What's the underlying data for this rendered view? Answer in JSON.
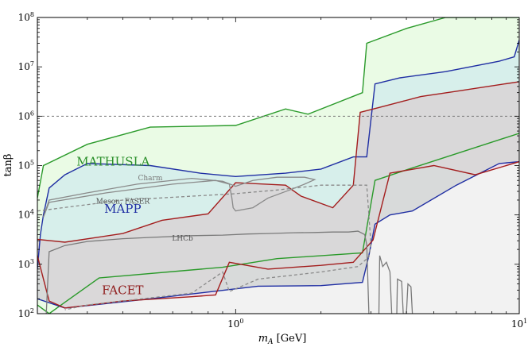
{
  "chart_data": {
    "type": "area",
    "xlabel_main": "m",
    "xlabel_sub": "A",
    "xlabel_unit": " [GeV]",
    "ylabel": "tanβ",
    "x_scale": "log",
    "y_scale": "log",
    "xlim": [
      0.2,
      10
    ],
    "ylim": [
      100,
      100000000
    ],
    "x_ticks": [
      {
        "value": 1,
        "label": "10",
        "exp": "0"
      },
      {
        "value": 10,
        "label": "10",
        "exp": "1"
      }
    ],
    "y_ticks": [
      {
        "value": 100,
        "label": "10",
        "exp": "2"
      },
      {
        "value": 1000,
        "label": "10",
        "exp": "3"
      },
      {
        "value": 10000,
        "label": "10",
        "exp": "4"
      },
      {
        "value": 100000,
        "label": "10",
        "exp": "5"
      },
      {
        "value": 1000000,
        "label": "10",
        "exp": "6"
      },
      {
        "value": 10000000,
        "label": "10",
        "exp": "7"
      },
      {
        "value": 100000000,
        "label": "10",
        "exp": "8"
      }
    ],
    "reference_line": {
      "y": 1000000,
      "style": "dashed",
      "color": "#777777"
    },
    "series": [
      {
        "name": "MATHUSLA",
        "color": "#2a9a2a",
        "fill": "#e6fae0",
        "upper": [
          [
            0.2,
            22000
          ],
          [
            0.21,
            100000
          ],
          [
            0.3,
            270000
          ],
          [
            0.5,
            600000
          ],
          [
            1.0,
            650000
          ],
          [
            1.5,
            1400000
          ],
          [
            1.8,
            1100000
          ],
          [
            2.8,
            3000000
          ],
          [
            2.9,
            30000000
          ],
          [
            4.0,
            60000000
          ],
          [
            5.5,
            100000000
          ],
          [
            10,
            100000000
          ]
        ],
        "lower": [
          [
            0.2,
            150
          ],
          [
            0.22,
            100
          ],
          [
            0.25,
            170
          ],
          [
            0.33,
            530
          ],
          [
            0.9,
            870
          ],
          [
            1.4,
            1300
          ],
          [
            2.8,
            1700
          ],
          [
            3.1,
            50000
          ],
          [
            4.0,
            82000
          ],
          [
            10,
            450000
          ]
        ]
      },
      {
        "name": "MAPP",
        "color": "#1f2ea3",
        "fill": "#d4ecec",
        "upper": [
          [
            0.2,
            800
          ],
          [
            0.205,
            4000
          ],
          [
            0.21,
            10000
          ],
          [
            0.22,
            35000
          ],
          [
            0.25,
            65000
          ],
          [
            0.3,
            110000
          ],
          [
            0.5,
            100000
          ],
          [
            0.75,
            70000
          ],
          [
            1.0,
            60000
          ],
          [
            1.5,
            70000
          ],
          [
            2.0,
            85000
          ],
          [
            2.6,
            150000
          ],
          [
            2.9,
            150000
          ],
          [
            3.1,
            4500000
          ],
          [
            3.8,
            6000000
          ],
          [
            5.5,
            8000000
          ],
          [
            8.5,
            13000000
          ],
          [
            9.6,
            16000000
          ],
          [
            10,
            35000000
          ]
        ],
        "lower": [
          [
            0.2,
            200
          ],
          [
            0.25,
            130
          ],
          [
            0.5,
            200
          ],
          [
            1.2,
            360
          ],
          [
            2.0,
            370
          ],
          [
            2.8,
            430
          ],
          [
            2.95,
            1500
          ],
          [
            3.1,
            6500
          ],
          [
            3.5,
            10000
          ],
          [
            4.2,
            12000
          ],
          [
            6.0,
            40000
          ],
          [
            8.5,
            110000
          ],
          [
            10,
            120000
          ]
        ]
      },
      {
        "name": "FACET",
        "color": "#a31d1d",
        "fill": "#f0dcea",
        "upper": [
          [
            0.2,
            3200
          ],
          [
            0.25,
            2800
          ],
          [
            0.4,
            4200
          ],
          [
            0.55,
            7800
          ],
          [
            0.8,
            10500
          ],
          [
            1.0,
            45000
          ],
          [
            1.5,
            40000
          ],
          [
            1.7,
            24000
          ],
          [
            2.2,
            14000
          ],
          [
            2.6,
            40000
          ],
          [
            2.75,
            1200000
          ],
          [
            3.2,
            1500000
          ],
          [
            4.5,
            2500000
          ],
          [
            6.0,
            3200000
          ],
          [
            10,
            5000000
          ]
        ],
        "lower": [
          [
            0.2,
            1500
          ],
          [
            0.22,
            180
          ],
          [
            0.25,
            130
          ],
          [
            0.4,
            180
          ],
          [
            0.7,
            220
          ],
          [
            0.85,
            240
          ],
          [
            0.95,
            1100
          ],
          [
            1.3,
            800
          ],
          [
            2.0,
            950
          ],
          [
            2.6,
            1100
          ],
          [
            3.05,
            3100
          ],
          [
            3.5,
            70000
          ],
          [
            5.0,
            100000
          ],
          [
            7.0,
            65000
          ],
          [
            10,
            120000
          ]
        ]
      }
    ],
    "contours": [
      {
        "name": "Charm",
        "color": "#8a8a8a",
        "dashed": false,
        "points": [
          [
            0.21,
            9000
          ],
          [
            0.22,
            18000
          ],
          [
            0.35,
            28000
          ],
          [
            0.6,
            42000
          ],
          [
            0.85,
            50000
          ],
          [
            0.95,
            42000
          ],
          [
            0.97,
            22000
          ],
          [
            0.98,
            14000
          ],
          [
            1.0,
            12000
          ],
          [
            1.15,
            14000
          ],
          [
            1.3,
            22000
          ],
          [
            1.55,
            32000
          ],
          [
            1.75,
            42000
          ],
          [
            1.9,
            52000
          ],
          [
            1.75,
            58000
          ],
          [
            1.4,
            58000
          ],
          [
            1.15,
            50000
          ],
          [
            1.0,
            38000
          ],
          [
            0.9,
            48000
          ],
          [
            0.7,
            55000
          ],
          [
            0.45,
            42000
          ],
          [
            0.3,
            28000
          ],
          [
            0.22,
            20000
          ],
          [
            0.21,
            9000
          ]
        ]
      },
      {
        "name": "Meson, FASER",
        "color": "#8a8a8a",
        "dashed": true,
        "points": [
          [
            0.2,
            12000
          ],
          [
            0.4,
            20000
          ],
          [
            0.8,
            25000
          ],
          [
            1.0,
            27000
          ],
          [
            1.4,
            32000
          ],
          [
            2.0,
            40000
          ],
          [
            2.6,
            40000
          ],
          [
            2.9,
            40000
          ],
          [
            3.0,
            2500
          ],
          [
            2.95,
            1400
          ],
          [
            2.7,
            900
          ],
          [
            2.0,
            700
          ],
          [
            1.2,
            500
          ],
          [
            0.95,
            280
          ],
          [
            0.9,
            700
          ],
          [
            0.7,
            260
          ],
          [
            0.4,
            180
          ],
          [
            0.3,
            150
          ],
          [
            0.25,
            120
          ]
        ]
      },
      {
        "name": "LHCb",
        "color": "#7a7a7a",
        "dashed": false,
        "points": [
          [
            0.215,
            100
          ],
          [
            0.22,
            1800
          ],
          [
            0.25,
            2400
          ],
          [
            0.3,
            2900
          ],
          [
            0.4,
            3300
          ],
          [
            0.5,
            3500
          ],
          [
            0.7,
            3800
          ],
          [
            0.9,
            3900
          ],
          [
            1.1,
            4100
          ],
          [
            1.3,
            4200
          ],
          [
            1.6,
            4350
          ],
          [
            1.9,
            4400
          ],
          [
            2.2,
            4500
          ],
          [
            2.5,
            4500
          ],
          [
            2.7,
            4700
          ],
          [
            2.85,
            4000
          ],
          [
            2.9,
            2500
          ],
          [
            2.95,
            100
          ]
        ]
      },
      {
        "name": "",
        "color": "#7a7a7a",
        "dashed": false,
        "points": [
          [
            3.2,
            100
          ],
          [
            3.22,
            1500
          ],
          [
            3.3,
            900
          ],
          [
            3.4,
            1100
          ],
          [
            3.5,
            700
          ],
          [
            3.55,
            100
          ]
        ]
      },
      {
        "name": "",
        "color": "#7a7a7a",
        "dashed": false,
        "points": [
          [
            3.7,
            100
          ],
          [
            3.72,
            500
          ],
          [
            3.85,
            450
          ],
          [
            3.9,
            100
          ],
          [
            4.0,
            100
          ],
          [
            4.05,
            400
          ],
          [
            4.15,
            350
          ],
          [
            4.2,
            100
          ]
        ]
      }
    ],
    "labels": [
      {
        "text": "MATHUSLA",
        "x": 0.37,
        "y": 100000,
        "color": "#2a8f2a",
        "size": "large"
      },
      {
        "text": "MAPP",
        "x": 0.4,
        "y": 11000,
        "color": "#1f2ea3",
        "size": "large"
      },
      {
        "text": "FACET",
        "x": 0.4,
        "y": 250,
        "color": "#8f1a1a",
        "size": "large"
      },
      {
        "text": "Charm",
        "x": 0.5,
        "y": 50000,
        "color": "#777777",
        "size": "small"
      },
      {
        "text": "Meson, FASER",
        "x": 0.4,
        "y": 17000,
        "color": "#555555",
        "size": "small"
      },
      {
        "text": "LHCb",
        "x": 0.65,
        "y": 3000,
        "color": "#555555",
        "size": "small"
      }
    ],
    "excluded_region": {
      "color": "#f2f2f2"
    }
  }
}
